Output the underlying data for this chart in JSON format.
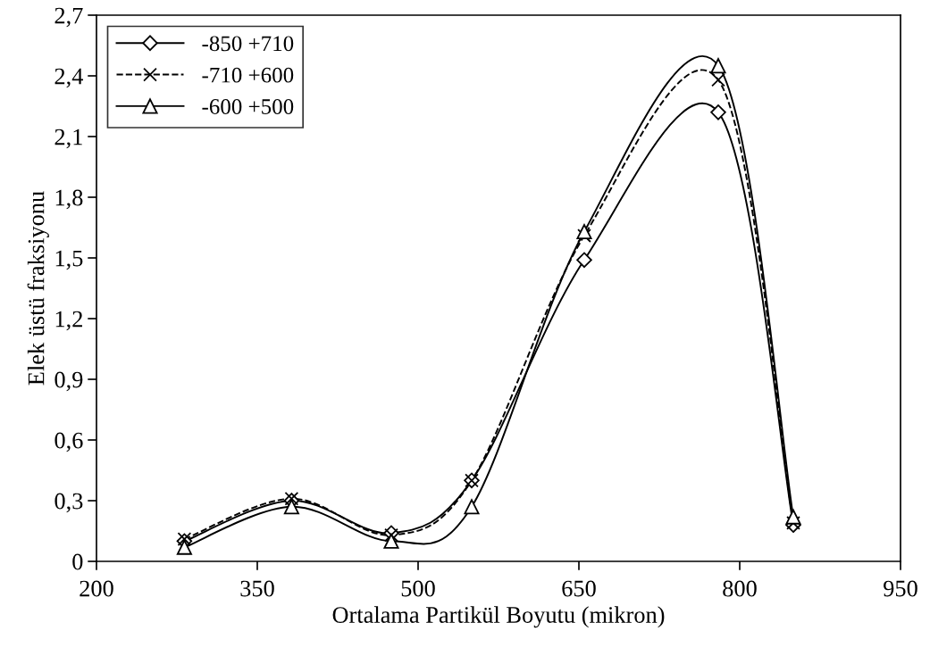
{
  "chart_data": {
    "type": "line",
    "xlabel": "Ortalama Partikül Boyutu (mikron)",
    "ylabel": "Elek üstü fraksiyonu",
    "x": [
      282,
      382,
      475,
      550,
      655,
      780,
      850
    ],
    "series": [
      {
        "name": "-850 +710",
        "color": "#000000",
        "marker": "diamond",
        "line_style": "solid",
        "values": [
          0.1,
          0.3,
          0.14,
          0.4,
          1.49,
          2.22,
          0.18
        ]
      },
      {
        "name": "-710 +600",
        "color": "#000000",
        "marker": "cross",
        "line_style": "dashed",
        "values": [
          0.11,
          0.31,
          0.13,
          0.4,
          1.61,
          2.38,
          0.19
        ]
      },
      {
        "name": "-600 +500",
        "color": "#000000",
        "marker": "triangle",
        "line_style": "solid",
        "values": [
          0.07,
          0.27,
          0.1,
          0.27,
          1.63,
          2.45,
          0.22
        ]
      }
    ],
    "xlim": [
      200,
      950
    ],
    "xticks": [
      200,
      350,
      500,
      650,
      800,
      950
    ],
    "ylim": [
      0,
      2.7
    ],
    "yticks": [
      {
        "value": 0,
        "label": "0"
      },
      {
        "value": 0.3,
        "label": "0,3"
      },
      {
        "value": 0.6,
        "label": "0,6"
      },
      {
        "value": 0.9,
        "label": "0,9"
      },
      {
        "value": 1.2,
        "label": "1,2"
      },
      {
        "value": 1.5,
        "label": "1,5"
      },
      {
        "value": 1.8,
        "label": "1,8"
      },
      {
        "value": 2.1,
        "label": "2,1"
      },
      {
        "value": 2.4,
        "label": "2,4"
      },
      {
        "value": 2.7,
        "label": "2,7"
      }
    ],
    "grid": false,
    "legend": "top left"
  }
}
